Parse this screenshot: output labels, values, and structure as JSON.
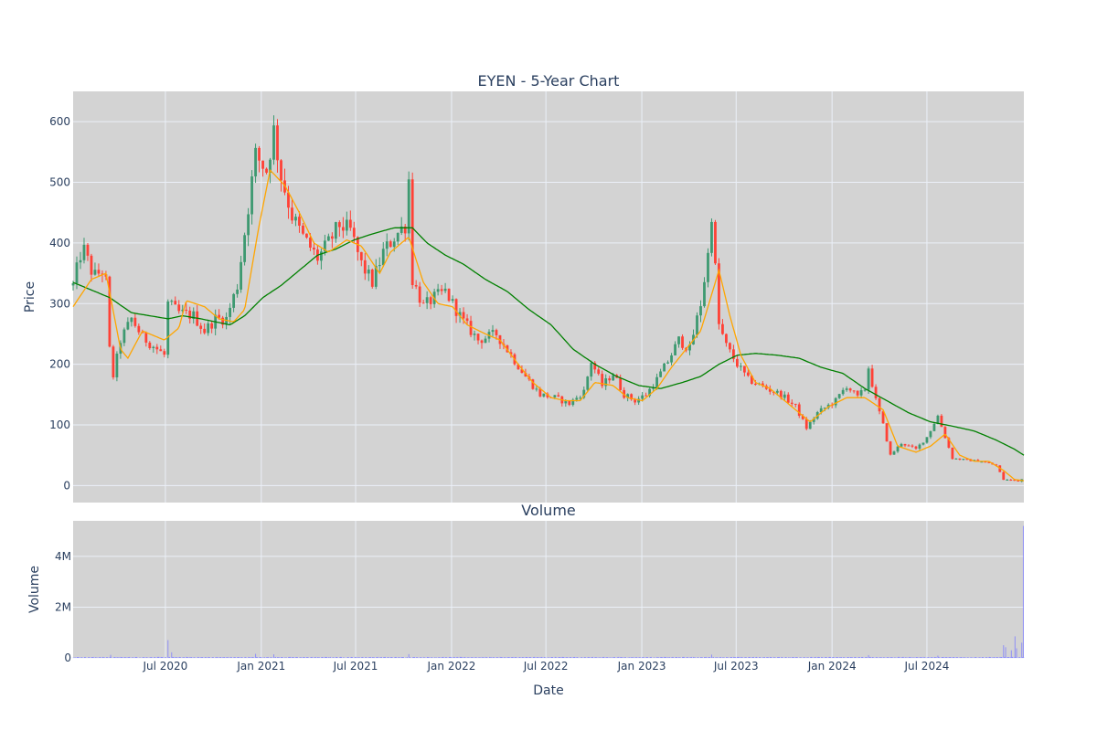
{
  "chart_data": [
    {
      "type": "candlestick",
      "title": "EYEN - 5-Year Chart",
      "ylabel": "Price",
      "ylim": [
        -28,
        650
      ],
      "y_ticks": [
        0,
        100,
        200,
        300,
        400,
        500,
        600
      ],
      "x_range": [
        "2020-01-06",
        "2025-01-03"
      ],
      "colors": {
        "up": "#3d9970",
        "down": "#ff4136",
        "ma_short": "#ffa500",
        "ma_long": "#008000",
        "plot_bg": "#d3d3d3",
        "grid": "#ebf0f8"
      },
      "series": [
        {
          "name": "Candlestick",
          "kind": "candlestick",
          "anchors": [
            [
              "2020-01-06",
              330
            ],
            [
              "2020-01-24",
              395
            ],
            [
              "2020-02-14",
              345
            ],
            [
              "2020-03-04",
              355
            ],
            [
              "2020-03-13",
              320
            ],
            [
              "2020-03-18",
              160
            ],
            [
              "2020-03-24",
              185
            ],
            [
              "2020-04-06",
              240
            ],
            [
              "2020-04-27",
              275
            ],
            [
              "2020-05-18",
              245
            ],
            [
              "2020-06-15",
              225
            ],
            [
              "2020-06-29",
              215
            ],
            [
              "2020-07-06",
              300
            ],
            [
              "2020-07-27",
              285
            ],
            [
              "2020-08-24",
              280
            ],
            [
              "2020-09-14",
              255
            ],
            [
              "2020-10-05",
              275
            ],
            [
              "2020-10-26",
              275
            ],
            [
              "2020-11-16",
              330
            ],
            [
              "2020-12-07",
              460
            ],
            [
              "2020-12-21",
              545
            ],
            [
              "2021-01-11",
              520
            ],
            [
              "2021-01-25",
              585
            ],
            [
              "2021-02-08",
              510
            ],
            [
              "2021-03-01",
              445
            ],
            [
              "2021-03-22",
              410
            ],
            [
              "2021-04-19",
              375
            ],
            [
              "2021-05-10",
              400
            ],
            [
              "2021-05-31",
              430
            ],
            [
              "2021-06-21",
              420
            ],
            [
              "2021-07-12",
              365
            ],
            [
              "2021-08-02",
              335
            ],
            [
              "2021-08-23",
              385
            ],
            [
              "2021-09-13",
              410
            ],
            [
              "2021-10-04",
              430
            ],
            [
              "2021-10-11",
              505
            ],
            [
              "2021-10-18",
              340
            ],
            [
              "2021-11-08",
              295
            ],
            [
              "2021-11-29",
              310
            ],
            [
              "2021-12-20",
              320
            ],
            [
              "2022-01-24",
              270
            ],
            [
              "2022-02-21",
              240
            ],
            [
              "2022-03-28",
              250
            ],
            [
              "2022-04-25",
              215
            ],
            [
              "2022-05-23",
              180
            ],
            [
              "2022-06-20",
              150
            ],
            [
              "2022-07-18",
              145
            ],
            [
              "2022-08-15",
              135
            ],
            [
              "2022-09-12",
              155
            ],
            [
              "2022-09-26",
              205
            ],
            [
              "2022-10-17",
              165
            ],
            [
              "2022-11-07",
              185
            ],
            [
              "2022-11-28",
              150
            ],
            [
              "2022-12-19",
              140
            ],
            [
              "2023-01-09",
              150
            ],
            [
              "2023-01-30",
              175
            ],
            [
              "2023-02-20",
              205
            ],
            [
              "2023-03-13",
              240
            ],
            [
              "2023-04-03",
              225
            ],
            [
              "2023-04-24",
              300
            ],
            [
              "2023-05-08",
              380
            ],
            [
              "2023-05-15",
              450
            ],
            [
              "2023-05-29",
              265
            ],
            [
              "2023-06-12",
              230
            ],
            [
              "2023-07-03",
              200
            ],
            [
              "2023-07-24",
              175
            ],
            [
              "2023-08-28",
              160
            ],
            [
              "2023-09-25",
              150
            ],
            [
              "2023-10-23",
              130
            ],
            [
              "2023-11-13",
              95
            ],
            [
              "2023-12-04",
              120
            ],
            [
              "2024-01-08",
              140
            ],
            [
              "2024-01-29",
              165
            ],
            [
              "2024-02-19",
              145
            ],
            [
              "2024-03-04",
              160
            ],
            [
              "2024-03-11",
              195
            ],
            [
              "2024-03-25",
              140
            ],
            [
              "2024-04-08",
              100
            ],
            [
              "2024-04-22",
              50
            ],
            [
              "2024-05-13",
              70
            ],
            [
              "2024-06-10",
              60
            ],
            [
              "2024-07-01",
              80
            ],
            [
              "2024-07-22",
              115
            ],
            [
              "2024-08-05",
              80
            ],
            [
              "2024-08-19",
              45
            ],
            [
              "2024-09-16",
              42
            ],
            [
              "2024-10-14",
              40
            ],
            [
              "2024-11-11",
              33
            ],
            [
              "2024-11-25",
              10
            ],
            [
              "2024-12-23",
              8
            ],
            [
              "2025-01-03",
              12
            ]
          ]
        },
        {
          "name": "MA short",
          "kind": "line",
          "anchors": [
            [
              "2020-01-06",
              295
            ],
            [
              "2020-02-10",
              340
            ],
            [
              "2020-03-09",
              350
            ],
            [
              "2020-04-06",
              225
            ],
            [
              "2020-04-20",
              210
            ],
            [
              "2020-05-18",
              255
            ],
            [
              "2020-06-15",
              245
            ],
            [
              "2020-06-29",
              240
            ],
            [
              "2020-07-27",
              260
            ],
            [
              "2020-08-10",
              305
            ],
            [
              "2020-09-14",
              295
            ],
            [
              "2020-10-12",
              275
            ],
            [
              "2020-11-09",
              270
            ],
            [
              "2020-11-30",
              290
            ],
            [
              "2020-12-28",
              430
            ],
            [
              "2021-01-18",
              520
            ],
            [
              "2021-02-15",
              495
            ],
            [
              "2021-03-15",
              450
            ],
            [
              "2021-04-12",
              400
            ],
            [
              "2021-05-10",
              385
            ],
            [
              "2021-06-14",
              405
            ],
            [
              "2021-07-12",
              395
            ],
            [
              "2021-08-16",
              350
            ],
            [
              "2021-09-06",
              385
            ],
            [
              "2021-10-11",
              410
            ],
            [
              "2021-11-08",
              335
            ],
            [
              "2021-12-06",
              300
            ],
            [
              "2022-01-03",
              295
            ],
            [
              "2022-01-31",
              265
            ],
            [
              "2022-03-07",
              250
            ],
            [
              "2022-04-04",
              240
            ],
            [
              "2022-05-09",
              200
            ],
            [
              "2022-06-06",
              170
            ],
            [
              "2022-07-11",
              145
            ],
            [
              "2022-08-08",
              140
            ],
            [
              "2022-09-05",
              140
            ],
            [
              "2022-10-03",
              170
            ],
            [
              "2022-11-07",
              165
            ],
            [
              "2022-12-05",
              145
            ],
            [
              "2023-01-02",
              140
            ],
            [
              "2023-01-30",
              160
            ],
            [
              "2023-02-27",
              195
            ],
            [
              "2023-03-27",
              225
            ],
            [
              "2023-04-24",
              255
            ],
            [
              "2023-05-29",
              355
            ],
            [
              "2023-06-19",
              280
            ],
            [
              "2023-07-10",
              215
            ],
            [
              "2023-08-07",
              170
            ],
            [
              "2023-09-04",
              160
            ],
            [
              "2023-10-16",
              130
            ],
            [
              "2023-11-20",
              105
            ],
            [
              "2023-12-25",
              130
            ],
            [
              "2024-01-29",
              145
            ],
            [
              "2024-03-04",
              145
            ],
            [
              "2024-04-08",
              125
            ],
            [
              "2024-05-06",
              65
            ],
            [
              "2024-06-10",
              55
            ],
            [
              "2024-07-08",
              65
            ],
            [
              "2024-08-05",
              85
            ],
            [
              "2024-09-02",
              50
            ],
            [
              "2024-09-30",
              40
            ],
            [
              "2024-10-28",
              40
            ],
            [
              "2024-11-25",
              25
            ],
            [
              "2024-12-16",
              10
            ],
            [
              "2025-01-03",
              8
            ]
          ]
        },
        {
          "name": "MA long",
          "kind": "line",
          "anchors": [
            [
              "2020-01-06",
              335
            ],
            [
              "2020-02-17",
              320
            ],
            [
              "2020-03-16",
              310
            ],
            [
              "2020-04-27",
              285
            ],
            [
              "2020-06-01",
              280
            ],
            [
              "2020-07-06",
              275
            ],
            [
              "2020-08-03",
              280
            ],
            [
              "2020-09-07",
              275
            ],
            [
              "2020-10-05",
              270
            ],
            [
              "2020-11-02",
              265
            ],
            [
              "2020-11-30",
              280
            ],
            [
              "2021-01-04",
              310
            ],
            [
              "2021-02-08",
              330
            ],
            [
              "2021-03-15",
              355
            ],
            [
              "2021-04-19",
              380
            ],
            [
              "2021-05-24",
              390
            ],
            [
              "2021-06-28",
              405
            ],
            [
              "2021-08-02",
              415
            ],
            [
              "2021-09-13",
              425
            ],
            [
              "2021-10-18",
              425
            ],
            [
              "2021-11-15",
              400
            ],
            [
              "2021-12-20",
              380
            ],
            [
              "2022-01-24",
              365
            ],
            [
              "2022-03-07",
              340
            ],
            [
              "2022-04-18",
              320
            ],
            [
              "2022-05-30",
              290
            ],
            [
              "2022-07-11",
              265
            ],
            [
              "2022-08-22",
              225
            ],
            [
              "2022-10-03",
              200
            ],
            [
              "2022-11-14",
              180
            ],
            [
              "2022-12-26",
              165
            ],
            [
              "2023-02-06",
              160
            ],
            [
              "2023-03-20",
              170
            ],
            [
              "2023-04-24",
              180
            ],
            [
              "2023-05-29",
              200
            ],
            [
              "2023-07-03",
              215
            ],
            [
              "2023-08-07",
              218
            ],
            [
              "2023-09-18",
              215
            ],
            [
              "2023-10-30",
              210
            ],
            [
              "2023-12-11",
              195
            ],
            [
              "2024-01-22",
              185
            ],
            [
              "2024-03-04",
              160
            ],
            [
              "2024-04-15",
              140
            ],
            [
              "2024-05-27",
              120
            ],
            [
              "2024-07-08",
              105
            ],
            [
              "2024-08-19",
              98
            ],
            [
              "2024-09-30",
              90
            ],
            [
              "2024-11-11",
              75
            ],
            [
              "2024-12-16",
              60
            ],
            [
              "2025-01-03",
              50
            ]
          ]
        }
      ]
    },
    {
      "type": "bar",
      "title": "Volume",
      "ylabel": "Volume",
      "xlabel": "Date",
      "ylim": [
        0,
        5400000
      ],
      "y_ticks": [
        0,
        2000000,
        4000000
      ],
      "y_tick_labels": [
        "0",
        "2M",
        "4M"
      ],
      "x_ticks": [
        "2020-07-01",
        "2021-01-01",
        "2021-07-01",
        "2022-01-01",
        "2022-07-01",
        "2023-01-01",
        "2023-07-01",
        "2024-01-01",
        "2024-07-01"
      ],
      "x_tick_labels": [
        "Jul 2020",
        "Jan 2021",
        "Jul 2021",
        "Jan 2022",
        "Jul 2022",
        "Jan 2023",
        "Jul 2023",
        "Jan 2024",
        "Jul 2024"
      ],
      "color": "#8080ff",
      "base_volume": 25000,
      "spikes": [
        [
          "2020-03-18",
          120000
        ],
        [
          "2020-07-06",
          700000
        ],
        [
          "2020-07-13",
          220000
        ],
        [
          "2020-12-21",
          160000
        ],
        [
          "2021-01-25",
          140000
        ],
        [
          "2021-10-11",
          150000
        ],
        [
          "2023-05-15",
          130000
        ],
        [
          "2024-03-11",
          110000
        ],
        [
          "2024-07-22",
          90000
        ],
        [
          "2024-11-25",
          500000
        ],
        [
          "2024-11-29",
          420000
        ],
        [
          "2024-12-10",
          300000
        ],
        [
          "2024-12-17",
          850000
        ],
        [
          "2024-12-20",
          380000
        ],
        [
          "2024-12-30",
          600000
        ],
        [
          "2025-01-02",
          5200000
        ]
      ]
    }
  ]
}
